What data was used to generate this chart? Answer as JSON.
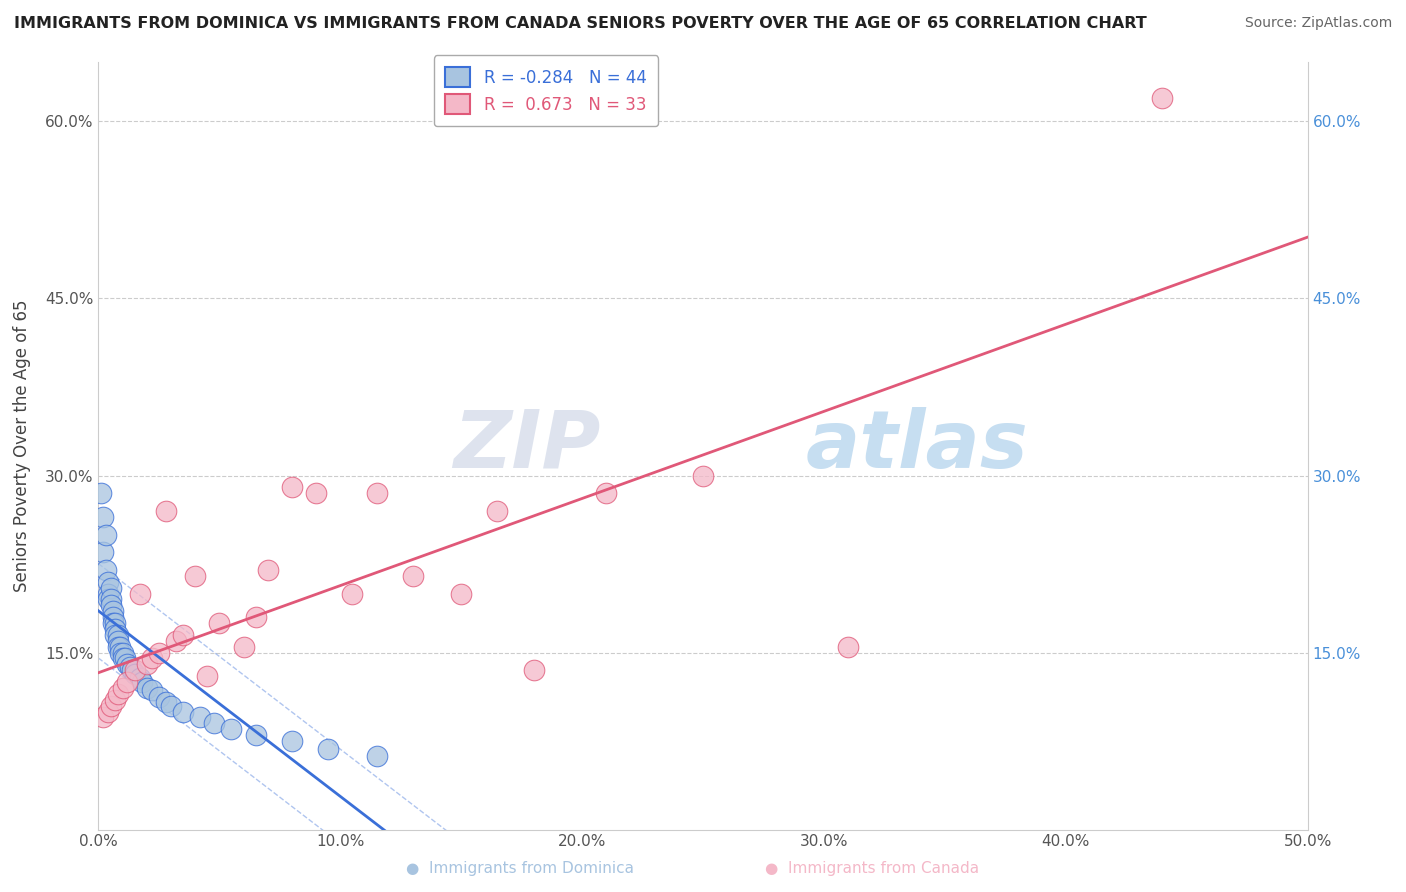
{
  "title": "IMMIGRANTS FROM DOMINICA VS IMMIGRANTS FROM CANADA SENIORS POVERTY OVER THE AGE OF 65 CORRELATION CHART",
  "source": "Source: ZipAtlas.com",
  "ylabel": "Seniors Poverty Over the Age of 65",
  "xlim": [
    0.0,
    0.5
  ],
  "ylim": [
    0.0,
    0.65
  ],
  "xtick_labels": [
    "0.0%",
    "10.0%",
    "20.0%",
    "30.0%",
    "40.0%",
    "50.0%"
  ],
  "xtick_vals": [
    0.0,
    0.1,
    0.2,
    0.3,
    0.4,
    0.5
  ],
  "ytick_labels": [
    "15.0%",
    "30.0%",
    "45.0%",
    "60.0%"
  ],
  "ytick_vals": [
    0.15,
    0.3,
    0.45,
    0.6
  ],
  "watermark_text": "ZIPatlas",
  "color_dominica": "#a8c4e0",
  "color_canada": "#f4b8c8",
  "line_color_dominica": "#3a6fd8",
  "line_color_canada": "#e05878",
  "right_tick_color": "#4a90d9",
  "legend_labels": [
    "R = -0.284   N = 44",
    "R =  0.673   N = 33"
  ],
  "bottom_labels": [
    "Immigrants from Dominica",
    "Immigrants from Canada"
  ],
  "dominica_x": [
    0.001,
    0.002,
    0.002,
    0.003,
    0.003,
    0.004,
    0.004,
    0.004,
    0.005,
    0.005,
    0.005,
    0.006,
    0.006,
    0.006,
    0.007,
    0.007,
    0.007,
    0.008,
    0.008,
    0.008,
    0.009,
    0.009,
    0.01,
    0.01,
    0.011,
    0.012,
    0.013,
    0.014,
    0.015,
    0.017,
    0.018,
    0.02,
    0.022,
    0.025,
    0.028,
    0.03,
    0.035,
    0.042,
    0.048,
    0.055,
    0.065,
    0.08,
    0.095,
    0.115
  ],
  "dominica_y": [
    0.285,
    0.265,
    0.235,
    0.25,
    0.22,
    0.21,
    0.2,
    0.195,
    0.205,
    0.195,
    0.19,
    0.185,
    0.18,
    0.175,
    0.175,
    0.17,
    0.165,
    0.165,
    0.16,
    0.155,
    0.155,
    0.15,
    0.15,
    0.145,
    0.145,
    0.14,
    0.138,
    0.135,
    0.132,
    0.128,
    0.125,
    0.12,
    0.118,
    0.112,
    0.108,
    0.105,
    0.1,
    0.095,
    0.09,
    0.085,
    0.08,
    0.075,
    0.068,
    0.062
  ],
  "canada_x": [
    0.002,
    0.004,
    0.005,
    0.007,
    0.008,
    0.01,
    0.012,
    0.015,
    0.017,
    0.02,
    0.022,
    0.025,
    0.028,
    0.032,
    0.035,
    0.04,
    0.045,
    0.05,
    0.06,
    0.065,
    0.07,
    0.08,
    0.09,
    0.105,
    0.115,
    0.13,
    0.15,
    0.165,
    0.18,
    0.21,
    0.25,
    0.31,
    0.44
  ],
  "canada_y": [
    0.095,
    0.1,
    0.105,
    0.11,
    0.115,
    0.12,
    0.125,
    0.135,
    0.2,
    0.14,
    0.145,
    0.15,
    0.27,
    0.16,
    0.165,
    0.215,
    0.13,
    0.175,
    0.155,
    0.18,
    0.22,
    0.29,
    0.285,
    0.2,
    0.285,
    0.215,
    0.2,
    0.27,
    0.135,
    0.285,
    0.3,
    0.155,
    0.62
  ]
}
